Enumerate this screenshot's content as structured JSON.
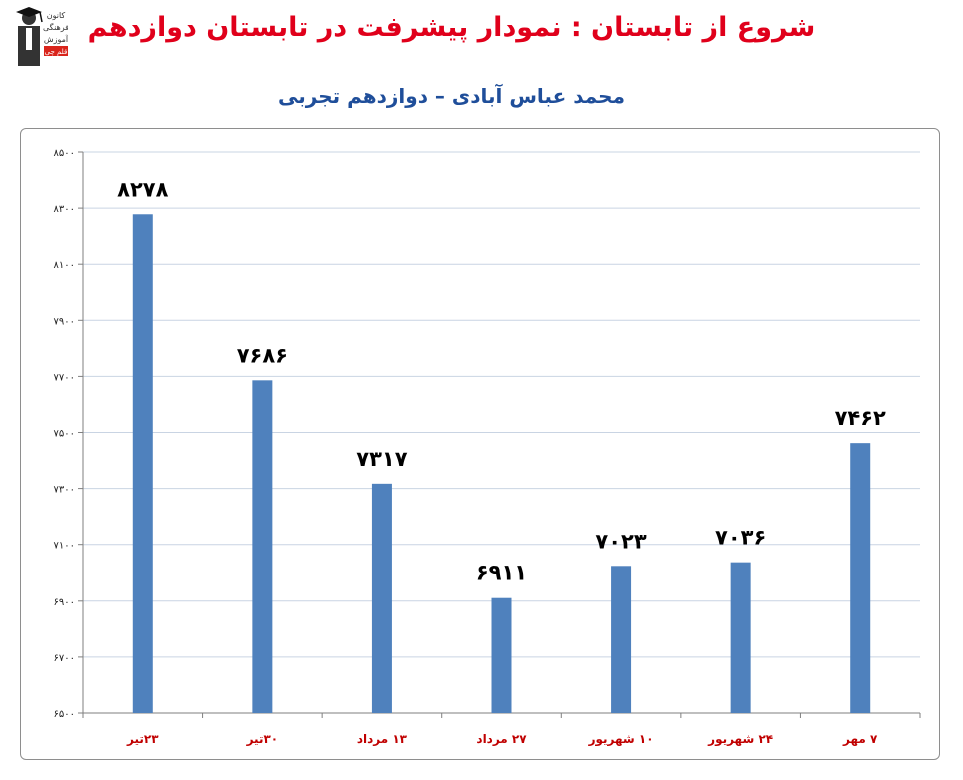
{
  "header": {
    "title": "شروع از تابستان : نمودار پیشرفت در تابستان دوازدهم",
    "subtitle": "محمد عباس آبادی – دوازدهم تجربی"
  },
  "logo": {
    "icon": "graduate-figure-icon",
    "lines": [
      "کانون",
      "فرهنگی",
      "آموزش",
      "قلم چی"
    ]
  },
  "colors": {
    "bar": "#4f81bd",
    "title": "#e0001b",
    "subtitle": "#1f4e9a",
    "xtick": "#c00000",
    "grid": "#c9d4e3"
  },
  "chart_data": {
    "type": "bar",
    "categories": [
      "۲۳تیر",
      "۳۰تیر",
      "۱۳ مرداد",
      "۲۷ مرداد",
      "۱۰ شهریور",
      "۲۴ شهریور",
      "۷ مهر"
    ],
    "values": [
      8278,
      7686,
      7317,
      6911,
      7023,
      7036,
      7462
    ],
    "value_labels": [
      "۸۲۷۸",
      "۷۶۸۶",
      "۷۳۱۷",
      "۶۹۱۱",
      "۷۰۲۳",
      "۷۰۳۶",
      "۷۴۶۲"
    ],
    "ylim": [
      6500,
      8500
    ],
    "yticks": [
      6500,
      6700,
      6900,
      7100,
      7300,
      7500,
      7700,
      7900,
      8100,
      8300,
      8500
    ],
    "ytick_labels": [
      "۶۵۰۰",
      "۶۷۰۰",
      "۶۹۰۰",
      "۷۱۰۰",
      "۷۳۰۰",
      "۷۵۰۰",
      "۷۷۰۰",
      "۷۹۰۰",
      "۸۱۰۰",
      "۸۳۰۰",
      "۸۵۰۰"
    ],
    "grid": true,
    "legend": "none"
  }
}
